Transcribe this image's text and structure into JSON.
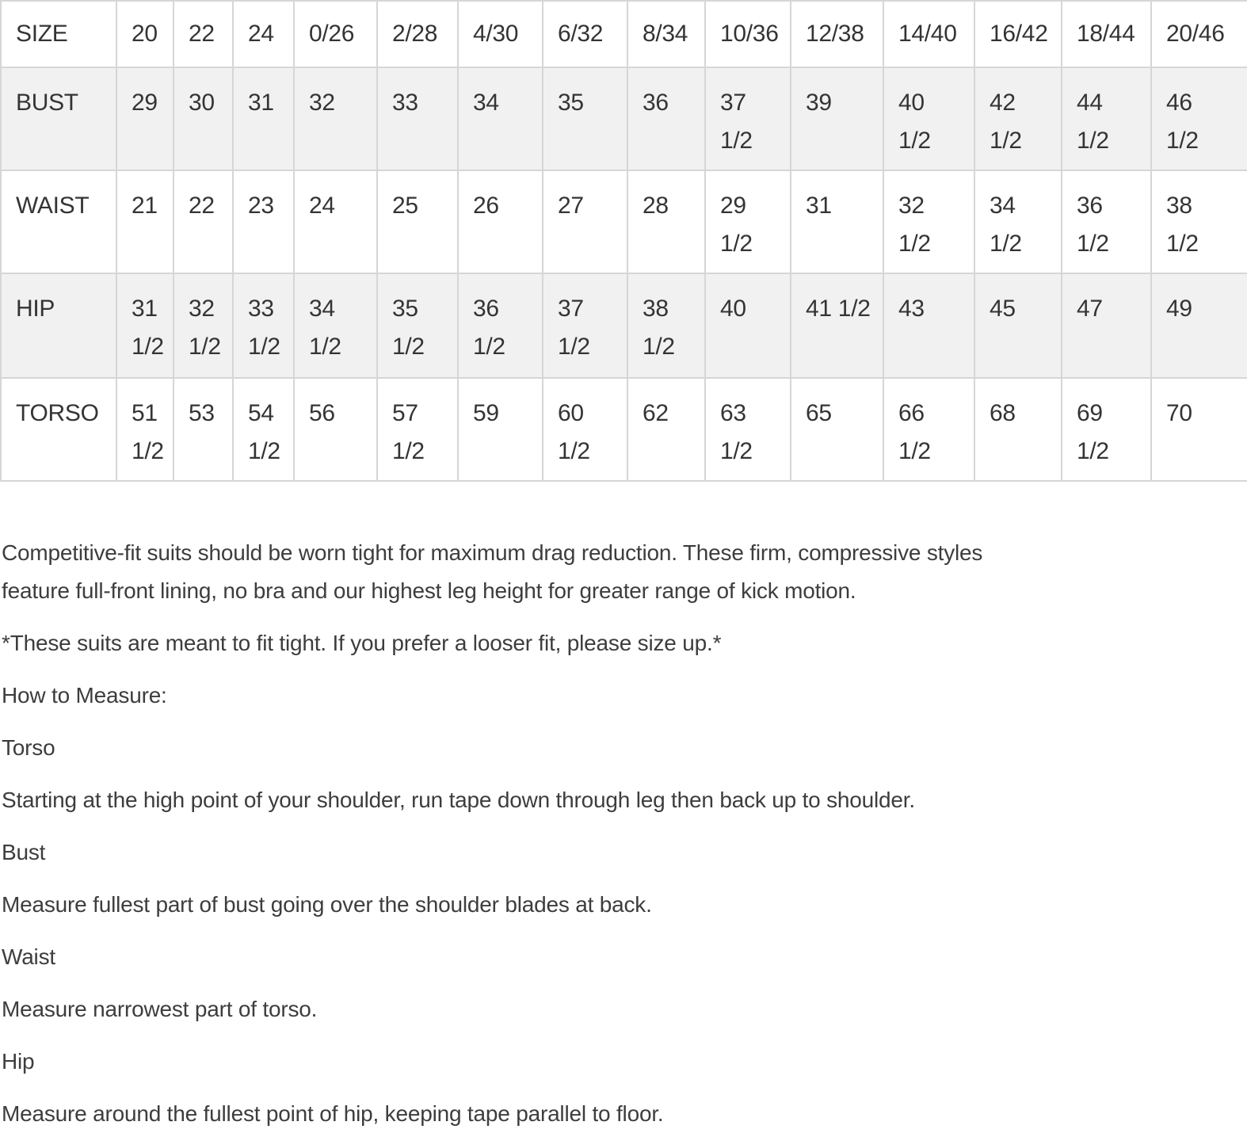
{
  "size_chart": {
    "rows": [
      {
        "label": "SIZE",
        "values": [
          "20",
          "22",
          "24",
          "0/26",
          "2/28",
          "4/30",
          "6/32",
          "8/34",
          "10/36",
          "12/38",
          "14/40",
          "16/42",
          "18/44",
          "20/46"
        ]
      },
      {
        "label": "BUST",
        "values": [
          "29",
          "30",
          "31",
          "32",
          "33",
          "34",
          "35",
          "36",
          "37\n1/2",
          "39",
          "40\n1/2",
          "42\n1/2",
          "44\n1/2",
          "46\n1/2"
        ]
      },
      {
        "label": "WAIST",
        "values": [
          "21",
          "22",
          "23",
          "24",
          "25",
          "26",
          "27",
          "28",
          "29\n1/2",
          "31",
          "32\n1/2",
          "34\n1/2",
          "36\n1/2",
          "38\n1/2"
        ]
      },
      {
        "label": "HIP",
        "values": [
          "31\n1/2",
          "32\n1/2",
          "33\n1/2",
          "34\n1/2",
          "35\n1/2",
          "36\n1/2",
          "37\n1/2",
          "38\n1/2",
          "40",
          "41 1/2",
          "43",
          "45",
          "47",
          "49"
        ]
      },
      {
        "label": "TORSO",
        "values": [
          "51\n1/2",
          "53",
          "54\n1/2",
          "56",
          "57\n1/2",
          "59",
          "60\n1/2",
          "62",
          "63\n1/2",
          "65",
          "66\n1/2",
          "68",
          "69\n1/2",
          "70"
        ]
      }
    ]
  },
  "notes": {
    "description": "Competitive-fit suits should be worn tight for maximum drag reduction. These firm, compressive styles\nfeature full-front lining, no bra and our highest leg height for greater range of kick motion.",
    "fit_note": "*These suits are meant to fit tight. If you prefer a looser fit, please size up.*",
    "how_to_measure_heading": "How to Measure:",
    "measurements": [
      {
        "name": "Torso",
        "instruction": "Starting at the high point of your shoulder, run tape down through leg then back up to shoulder."
      },
      {
        "name": "Bust",
        "instruction": "Measure fullest part of bust going over the shoulder blades at back."
      },
      {
        "name": "Waist",
        "instruction": "Measure narrowest part of torso."
      },
      {
        "name": "Hip",
        "instruction": "Measure around the fullest point of hip, keeping tape parallel to floor."
      }
    ]
  },
  "colors": {
    "shaded_row_bg": "#f1f1f1",
    "table_border": "#d6d6d6",
    "table_text": "#343434",
    "body_text": "#3d3d3d"
  }
}
